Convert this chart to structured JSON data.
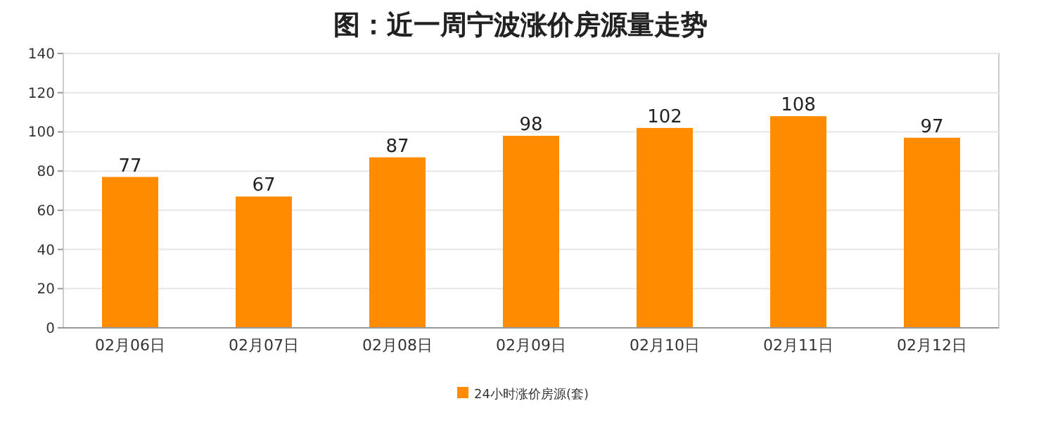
{
  "chart_data": {
    "type": "bar",
    "title": "图：近一周宁波涨价房源量走势",
    "categories": [
      "02月06日",
      "02月07日",
      "02月08日",
      "02月09日",
      "02月10日",
      "02月11日",
      "02月12日"
    ],
    "series": [
      {
        "name": "24小时涨价房源(套)",
        "color": "#ff8c00",
        "values": [
          77,
          67,
          87,
          98,
          102,
          108,
          97
        ]
      }
    ],
    "ylim": [
      0,
      140
    ],
    "yticks": [
      0,
      20,
      40,
      60,
      80,
      100,
      120,
      140
    ],
    "grid": "y",
    "data_labels": true,
    "legend": "bottom"
  }
}
